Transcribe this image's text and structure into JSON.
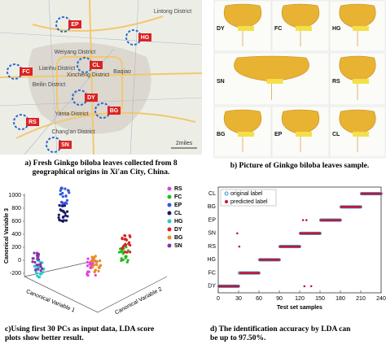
{
  "panel_a": {
    "labels": [
      "Lintong District",
      "Weiyang District",
      "Baqiao",
      "Lianhu District",
      "Xincheng District",
      "Beilin District",
      "Yanta District",
      "Chang'an District"
    ],
    "markers": [
      "EP",
      "FC",
      "CL",
      "HG",
      "BG",
      "SN",
      "DY",
      "RS"
    ],
    "scale": "2miles",
    "caption": "a) Fresh Ginkgo biloba leaves collected from 8 geographical origins in Xi'an City, China."
  },
  "panel_b": {
    "photos": [
      "DY",
      "FC",
      "HG",
      "SN",
      "RS",
      "BG",
      "EP",
      "CL"
    ],
    "caption": "b) Picture of Ginkgo biloba leaves sample."
  },
  "panel_c": {
    "legend": [
      {
        "name": "RS",
        "color": "#e040e0"
      },
      {
        "name": "FC",
        "color": "#22bb22"
      },
      {
        "name": "EP",
        "color": "#3355dd"
      },
      {
        "name": "CL",
        "color": "#1a1a66"
      },
      {
        "name": "HG",
        "color": "#22cccc"
      },
      {
        "name": "DY",
        "color": "#dd2222"
      },
      {
        "name": "BG",
        "color": "#ee8822"
      },
      {
        "name": "SN",
        "color": "#8833aa"
      }
    ],
    "y_label": "Canonical Variable 3",
    "x_label": "Canonical Variable 1",
    "z_label": "Canonical Variable 2",
    "yticks": [
      1000,
      800,
      600,
      400,
      200,
      0,
      -200
    ],
    "caption": "c)Using first 30 PCs as input data, LDA score plots show better result."
  },
  "chart_data": {
    "type": "scatter",
    "x_label": "Test set samples",
    "categories": [
      "DY",
      "FC",
      "HG",
      "RS",
      "SN",
      "EP",
      "BG",
      "CL"
    ],
    "xlim": [
      0,
      240
    ],
    "xticks": [
      0,
      30,
      60,
      90,
      120,
      150,
      180,
      210,
      240
    ],
    "x": [
      1,
      2,
      3,
      4,
      5,
      6,
      7,
      8,
      9,
      10,
      11,
      12,
      13,
      14,
      15,
      16,
      17,
      18,
      19,
      20,
      21,
      22,
      23,
      24,
      25,
      26,
      27,
      28,
      29,
      30,
      31,
      32,
      33,
      34,
      35,
      36,
      37,
      38,
      39,
      40,
      41,
      42,
      43,
      44,
      45,
      46,
      47,
      48,
      49,
      50,
      51,
      52,
      53,
      54,
      55,
      56,
      57,
      58,
      59,
      60,
      61,
      62,
      63,
      64,
      65,
      66,
      67,
      68,
      69,
      70,
      71,
      72,
      73,
      74,
      75,
      76,
      77,
      78,
      79,
      80,
      81,
      82,
      83,
      84,
      85,
      86,
      87,
      88,
      89,
      90,
      91,
      92,
      93,
      94,
      95,
      96,
      97,
      98,
      99,
      100,
      101,
      102,
      103,
      104,
      105,
      106,
      107,
      108,
      109,
      110,
      111,
      112,
      113,
      114,
      115,
      116,
      117,
      118,
      119,
      120,
      121,
      122,
      123,
      124,
      125,
      126,
      127,
      128,
      129,
      130,
      131,
      132,
      133,
      134,
      135,
      136,
      137,
      138,
      139,
      140,
      141,
      142,
      143,
      144,
      145,
      146,
      147,
      148,
      149,
      150,
      151,
      152,
      153,
      154,
      155,
      156,
      157,
      158,
      159,
      160,
      161,
      162,
      163,
      164,
      165,
      166,
      167,
      168,
      169,
      170,
      171,
      172,
      173,
      174,
      175,
      176,
      177,
      178,
      179,
      180,
      181,
      182,
      183,
      184,
      185,
      186,
      187,
      188,
      189,
      190,
      191,
      192,
      193,
      194,
      195,
      196,
      197,
      198,
      199,
      200,
      201,
      202,
      203,
      204,
      205,
      206,
      207,
      208,
      209,
      210,
      211,
      212,
      213,
      214,
      215,
      216,
      217,
      218,
      219,
      220,
      221,
      222,
      223,
      224,
      225,
      226,
      227,
      228,
      229,
      230,
      231,
      232,
      233,
      234,
      235,
      236,
      237,
      238,
      239,
      240
    ],
    "series": [
      {
        "name": "original label",
        "color": "#3399cc",
        "values": [
          0,
          0,
          0,
          0,
          0,
          0,
          0,
          0,
          0,
          0,
          0,
          0,
          0,
          0,
          0,
          0,
          0,
          0,
          0,
          0,
          0,
          0,
          0,
          0,
          0,
          0,
          0,
          0,
          0,
          0,
          1,
          1,
          1,
          1,
          1,
          1,
          1,
          1,
          1,
          1,
          1,
          1,
          1,
          1,
          1,
          1,
          1,
          1,
          1,
          1,
          1,
          1,
          1,
          1,
          1,
          1,
          1,
          1,
          1,
          1,
          2,
          2,
          2,
          2,
          2,
          2,
          2,
          2,
          2,
          2,
          2,
          2,
          2,
          2,
          2,
          2,
          2,
          2,
          2,
          2,
          2,
          2,
          2,
          2,
          2,
          2,
          2,
          2,
          2,
          2,
          3,
          3,
          3,
          3,
          3,
          3,
          3,
          3,
          3,
          3,
          3,
          3,
          3,
          3,
          3,
          3,
          3,
          3,
          3,
          3,
          3,
          3,
          3,
          3,
          3,
          3,
          3,
          3,
          3,
          3,
          4,
          4,
          4,
          4,
          4,
          4,
          4,
          4,
          4,
          4,
          4,
          4,
          4,
          4,
          4,
          4,
          4,
          4,
          4,
          4,
          4,
          4,
          4,
          4,
          4,
          4,
          4,
          4,
          4,
          4,
          5,
          5,
          5,
          5,
          5,
          5,
          5,
          5,
          5,
          5,
          5,
          5,
          5,
          5,
          5,
          5,
          5,
          5,
          5,
          5,
          5,
          5,
          5,
          5,
          5,
          5,
          5,
          5,
          5,
          5,
          6,
          6,
          6,
          6,
          6,
          6,
          6,
          6,
          6,
          6,
          6,
          6,
          6,
          6,
          6,
          6,
          6,
          6,
          6,
          6,
          6,
          6,
          6,
          6,
          6,
          6,
          6,
          6,
          6,
          6,
          7,
          7,
          7,
          7,
          7,
          7,
          7,
          7,
          7,
          7,
          7,
          7,
          7,
          7,
          7,
          7,
          7,
          7,
          7,
          7,
          7,
          7,
          7,
          7,
          7,
          7,
          7,
          7,
          7,
          7
        ]
      },
      {
        "name": "predicted label",
        "color": "#cc1133",
        "values": [
          0,
          0,
          0,
          0,
          0,
          0,
          0,
          0,
          0,
          0,
          0,
          0,
          0,
          0,
          0,
          0,
          0,
          0,
          0,
          0,
          0,
          0,
          0,
          0,
          0,
          0,
          0,
          4,
          0,
          0,
          3,
          1,
          1,
          1,
          1,
          1,
          1,
          1,
          1,
          1,
          1,
          1,
          1,
          1,
          1,
          1,
          1,
          1,
          1,
          1,
          1,
          1,
          1,
          1,
          1,
          1,
          1,
          1,
          1,
          1,
          2,
          2,
          2,
          2,
          2,
          2,
          2,
          2,
          2,
          2,
          2,
          2,
          2,
          2,
          2,
          2,
          2,
          2,
          2,
          2,
          2,
          2,
          2,
          2,
          2,
          2,
          2,
          2,
          2,
          2,
          3,
          3,
          3,
          3,
          3,
          3,
          3,
          3,
          3,
          3,
          3,
          3,
          3,
          3,
          3,
          3,
          3,
          3,
          3,
          3,
          3,
          3,
          3,
          3,
          3,
          3,
          3,
          3,
          3,
          3,
          4,
          4,
          4,
          4,
          5,
          4,
          0,
          4,
          4,
          5,
          4,
          4,
          4,
          4,
          4,
          4,
          0,
          4,
          4,
          4,
          4,
          4,
          4,
          4,
          4,
          4,
          4,
          4,
          4,
          4,
          5,
          5,
          5,
          5,
          5,
          5,
          5,
          5,
          5,
          5,
          5,
          5,
          5,
          5,
          5,
          5,
          5,
          5,
          5,
          5,
          5,
          5,
          5,
          5,
          5,
          5,
          5,
          5,
          5,
          5,
          6,
          6,
          6,
          6,
          6,
          6,
          6,
          6,
          6,
          6,
          6,
          6,
          6,
          6,
          6,
          6,
          6,
          6,
          6,
          6,
          6,
          6,
          6,
          6,
          6,
          6,
          6,
          6,
          6,
          6,
          7,
          7,
          7,
          7,
          7,
          7,
          7,
          7,
          7,
          7,
          7,
          7,
          7,
          7,
          7,
          7,
          7,
          7,
          7,
          7,
          7,
          7,
          7,
          7,
          7,
          7,
          7,
          7,
          7,
          7
        ]
      }
    ],
    "caption": "d) The identification accuracy by LDA can be up to 97.50%."
  }
}
